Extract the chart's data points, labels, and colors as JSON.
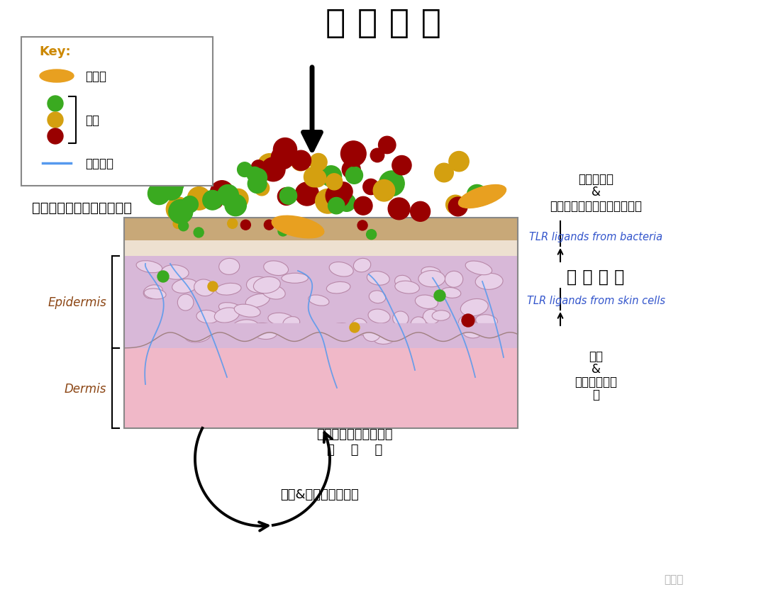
{
  "title": "环 境 因 素",
  "bg_color": "#ffffff",
  "key_title": "Key:",
  "key_yeast_label": "酵母菌",
  "key_bacteria_label": "细菌",
  "key_nerve_label": "神经末梢",
  "label_skin_change": "皮肤环境的变化（益生菌）",
  "label_epidermis": "Epidermis",
  "label_dermis": "Dermis",
  "label_right_top1": "微生物失调",
  "label_right_top2": "&",
  "label_right_top3": "细菌合成的维生素、有机酸等",
  "label_barrier": "屏 障 破 坏",
  "label_tlr1": "TLR ligands from bacteria",
  "label_tlr2": "TLR ligands from skin cells",
  "label_inflammation1": "炎症",
  "label_inflammation2": "&",
  "label_inflammation3": "皮肤免疫力受",
  "label_inflammation4": "损",
  "label_bottom1a": "皮肤屏障受损伴有微生",
  "label_bottom1b": "物    失    衡",
  "label_bottom2": "敏感&反应性皮肤恶化",
  "watermark": "壹安态",
  "yeast_color": "#E8A020",
  "bacteria_green": "#3aaa20",
  "bacteria_yellow": "#d4a010",
  "bacteria_red": "#990000",
  "nerve_color": "#5599ee",
  "skin_sc_color": "#c8a878",
  "skin_gl_color": "#ede0d0",
  "skin_epi_color": "#d8b8d8",
  "skin_derm_color": "#f0b8c8",
  "cell_fill": "#e8d0e8",
  "cell_edge": "#b888a8"
}
